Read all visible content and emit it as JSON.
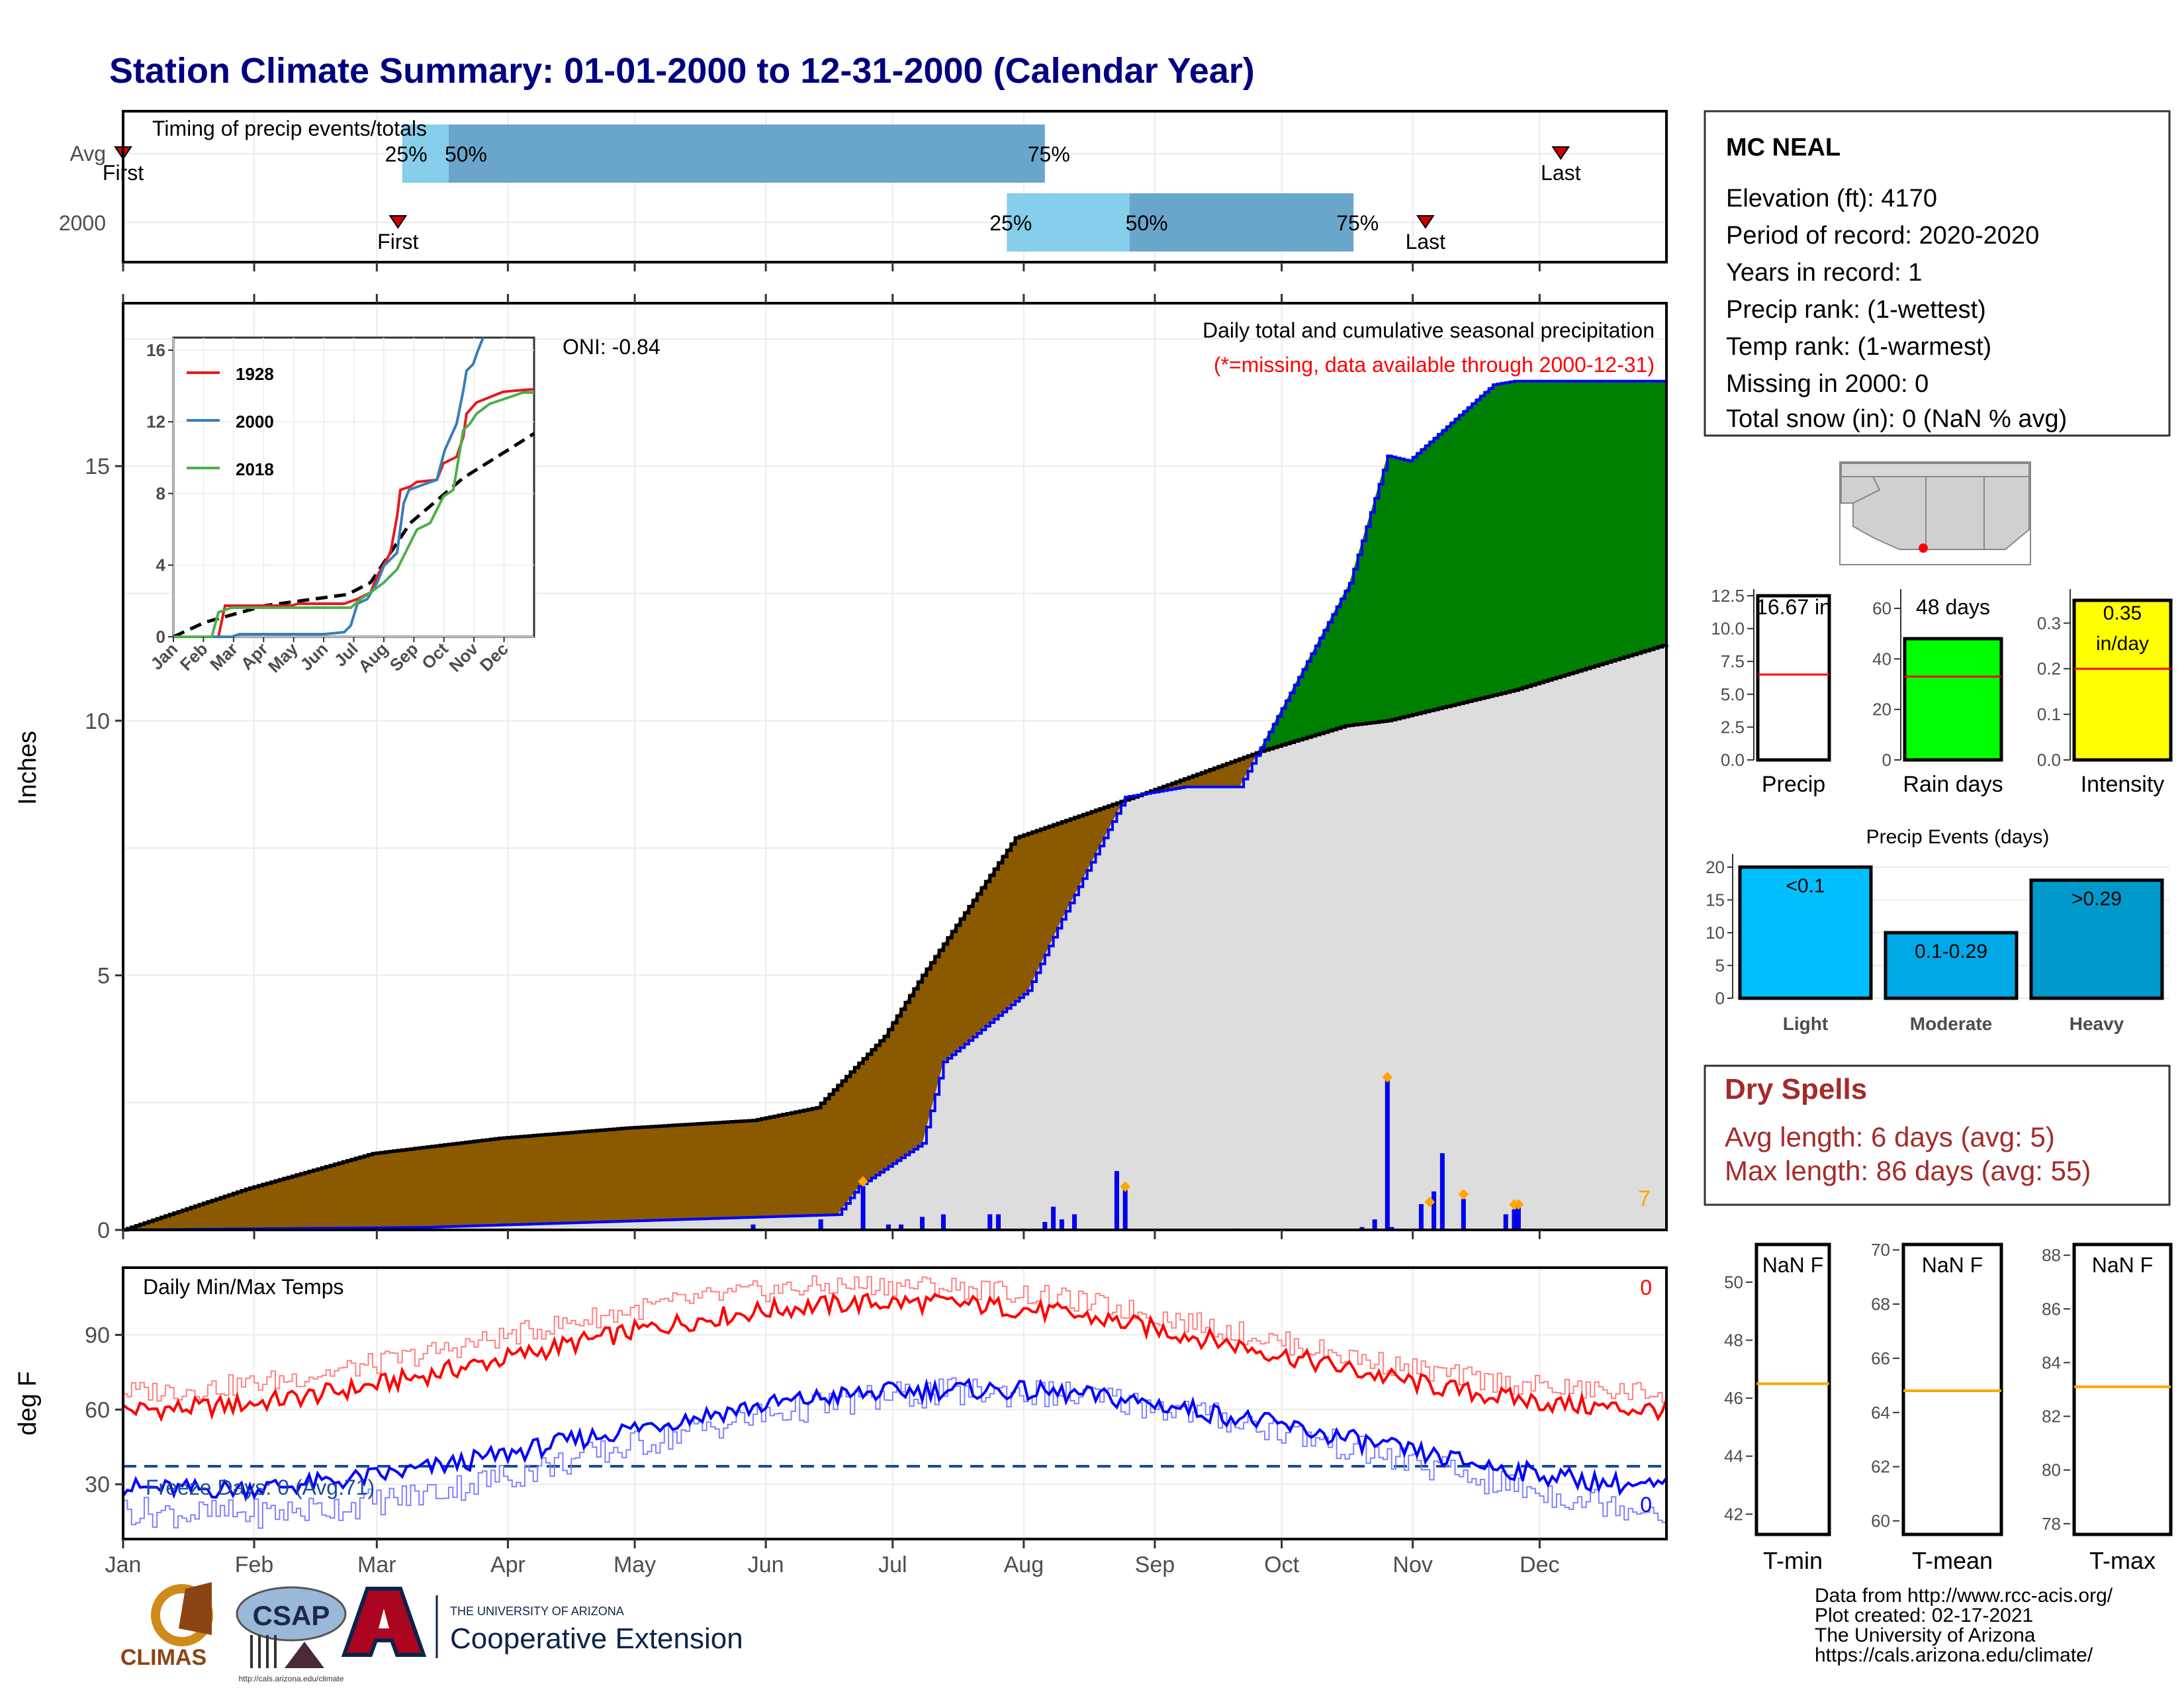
{
  "title": "Station Climate Summary: 01-01-2000 to 12-31-2000 (Calendar Year)",
  "colors": {
    "title": "#000080",
    "wet": "#008000",
    "dry": "#8b5a00",
    "normal": "#dddddd",
    "daily": "#0000ff",
    "tmax": "#ff0000",
    "tmin": "#0000ff",
    "drySpells": "#a52a2a",
    "light": "#00bfff",
    "moderate": "#00a9e6",
    "heavy": "#0099cc",
    "precipBar": "#ffffff",
    "rainBar": "#00ff00",
    "intensityBar": "#ffff00"
  },
  "months": [
    "Jan",
    "Feb",
    "Mar",
    "Apr",
    "May",
    "Jun",
    "Jul",
    "Aug",
    "Sep",
    "Oct",
    "Nov",
    "Dec"
  ],
  "timing": {
    "label": "Timing of precip events/totals",
    "rows": [
      {
        "name": "Avg",
        "first_label": "First",
        "last_label": "Last",
        "first_doy": 1,
        "last_doy": 341,
        "p25_label": "25%",
        "p50_label": "50%",
        "p75_label": "75%",
        "p25": 67,
        "p50": 78,
        "p75": 219
      },
      {
        "name": "2000",
        "first_label": "First",
        "last_label": "Last",
        "first_doy": 66,
        "last_doy": 309,
        "p25_label": "25%",
        "p50_label": "50%",
        "p75_label": "75%",
        "p25": 210,
        "p50": 239,
        "p75": 292
      }
    ]
  },
  "main": {
    "ylabel": "Inches",
    "yticks": [
      "0",
      "5",
      "10",
      "15"
    ],
    "ylim": [
      0,
      18.2
    ],
    "title": "Daily total and cumulative seasonal precipitation",
    "missing_note": "(*=missing, data available through 2000-12-31)",
    "oni": "ONI: -0.84",
    "corner": "7"
  },
  "inset": {
    "yticks": [
      "0",
      "4",
      "8",
      "12",
      "16"
    ],
    "xticks": [
      "Jan",
      "Feb",
      "Mar",
      "Apr",
      "May",
      "Jun",
      "Jul",
      "Aug",
      "Sep",
      "Oct",
      "Nov",
      "Dec"
    ],
    "legend": [
      "1928",
      "2000",
      "2018"
    ]
  },
  "temps": {
    "label": "Daily Min/Max Temps",
    "ylabel": "deg F",
    "yticks": [
      "30",
      "60",
      "90"
    ],
    "freeze": "Freeze Days: 0 (Avg:71)",
    "tmax_missing": "0",
    "tmin_missing": "0"
  },
  "station": {
    "name": "MC NEAL",
    "lines": [
      "Elevation (ft): 4170",
      "Period of record: 2020-2020",
      "Years in record: 1",
      "Precip rank:  (1-wettest)",
      "Temp rank:  (1-warmest)",
      "Missing in 2000: 0",
      "Total snow (in): 0 (NaN % avg)"
    ]
  },
  "mini_bars": [
    {
      "label": "Precip",
      "value_text": "16.67 in",
      "value": 16.67,
      "avg": 6.5,
      "max": 12.5,
      "ticks": [
        "0.0",
        "2.5",
        "5.0",
        "7.5",
        "10.0",
        "12.5"
      ]
    },
    {
      "label": "Rain days",
      "value_text": "48 days",
      "value": 48,
      "avg": 33,
      "max": 65,
      "ticks": [
        "0",
        "20",
        "40",
        "60"
      ]
    },
    {
      "label": "Intensity",
      "value_text": "0.35 in/day",
      "value_line1": "0.35",
      "value_line2": "in/day",
      "value": 0.35,
      "avg": 0.2,
      "max": 0.36,
      "ticks": [
        "0.0",
        "0.1",
        "0.2",
        "0.3"
      ]
    }
  ],
  "events": {
    "title": "Precip Events (days)",
    "yticks": [
      "0",
      "5",
      "10",
      "15",
      "20"
    ],
    "bars": [
      {
        "cat": "Light",
        "label": "<0.1",
        "value": 20
      },
      {
        "cat": "Moderate",
        "label": "0.1-0.29",
        "value": 10
      },
      {
        "cat": "Heavy",
        "label": ">0.29",
        "value": 18
      }
    ]
  },
  "dry_spells": {
    "title": "Dry Spells",
    "avg_line": "Avg length: 6 days (avg: 5)",
    "max_line": "Max length: 86 days (avg: 55)"
  },
  "temp_boxes": [
    {
      "label": "T-min",
      "value": "NaN F",
      "ticks": [
        "42",
        "44",
        "46",
        "48",
        "50"
      ],
      "range": [
        41.3,
        51.3
      ],
      "avg": 46.5
    },
    {
      "label": "T-mean",
      "value": "NaN F",
      "ticks": [
        "60",
        "62",
        "64",
        "66",
        "68",
        "70"
      ],
      "range": [
        59.5,
        70.2
      ],
      "avg": 64.8
    },
    {
      "label": "T-max",
      "value": "NaN F",
      "ticks": [
        "78",
        "80",
        "82",
        "84",
        "86",
        "88"
      ],
      "range": [
        77.6,
        88.4
      ],
      "avg": 83.1
    }
  ],
  "footer": {
    "lines": [
      "Data from http://www.rcc-acis.org/",
      "Plot created: 02-17-2021",
      "The University of Arizona",
      "https://cals.arizona.edu/climate/"
    ],
    "logo_climas": "CLIMAS",
    "logo_csap": "CSAP",
    "logo_csap_url": "http://cals.arizona.edu/climate",
    "coop_small": "THE UNIVERSITY OF ARIZONA",
    "coop_big": "Cooperative Extension"
  },
  "chart_data": {
    "type": "area",
    "title": "Daily total and cumulative seasonal precipitation",
    "ylabel": "Inches",
    "ylim": [
      0,
      18.2
    ],
    "x_unit": "day of year 2000",
    "normal_cumulative": {
      "x": [
        1,
        30,
        60,
        90,
        120,
        150,
        165,
        181,
        190,
        212,
        240,
        270,
        290,
        300,
        330,
        366
      ],
      "y": [
        0,
        0.8,
        1.5,
        1.8,
        2.0,
        2.15,
        2.4,
        3.8,
        5.0,
        7.7,
        8.5,
        9.4,
        9.9,
        10.0,
        10.6,
        11.5
      ]
    },
    "observed_cumulative": {
      "x": [
        1,
        72,
        170,
        175,
        190,
        195,
        215,
        223,
        238,
        252,
        265,
        291,
        300,
        305,
        325,
        330,
        340,
        366
      ],
      "y": [
        0,
        0.05,
        0.3,
        0.85,
        1.7,
        3.3,
        4.7,
        6.1,
        8.5,
        8.7,
        8.7,
        12.7,
        15.2,
        15.1,
        16.6,
        16.67,
        16.67,
        16.67
      ]
    },
    "daily_precip": [
      {
        "x": 150,
        "y": 0.1
      },
      {
        "x": 166,
        "y": 0.2
      },
      {
        "x": 176,
        "y": 0.85
      },
      {
        "x": 182,
        "y": 0.1
      },
      {
        "x": 185,
        "y": 0.1
      },
      {
        "x": 190,
        "y": 0.25
      },
      {
        "x": 195,
        "y": 0.3
      },
      {
        "x": 206,
        "y": 0.3
      },
      {
        "x": 208,
        "y": 0.3
      },
      {
        "x": 219,
        "y": 0.15
      },
      {
        "x": 221,
        "y": 0.45
      },
      {
        "x": 223,
        "y": 0.2
      },
      {
        "x": 226,
        "y": 0.3
      },
      {
        "x": 236,
        "y": 1.15
      },
      {
        "x": 238,
        "y": 0.8
      },
      {
        "x": 264,
        "y": 0.02
      },
      {
        "x": 294,
        "y": 0.05
      },
      {
        "x": 297,
        "y": 0.2
      },
      {
        "x": 300,
        "y": 3.0
      },
      {
        "x": 301,
        "y": 0.05
      },
      {
        "x": 308,
        "y": 0.5
      },
      {
        "x": 311,
        "y": 0.75
      },
      {
        "x": 313,
        "y": 1.5
      },
      {
        "x": 318,
        "y": 0.6
      },
      {
        "x": 328,
        "y": 0.3
      },
      {
        "x": 330,
        "y": 0.4
      },
      {
        "x": 331,
        "y": 0.45
      }
    ],
    "flagged_days": [
      {
        "x": 176,
        "y": 0.95
      },
      {
        "x": 238,
        "y": 0.85
      },
      {
        "x": 300,
        "y": 3.0
      },
      {
        "x": 310,
        "y": 0.55
      },
      {
        "x": 318,
        "y": 0.7
      },
      {
        "x": 330,
        "y": 0.5
      },
      {
        "x": 331,
        "y": 0.5
      }
    ]
  }
}
